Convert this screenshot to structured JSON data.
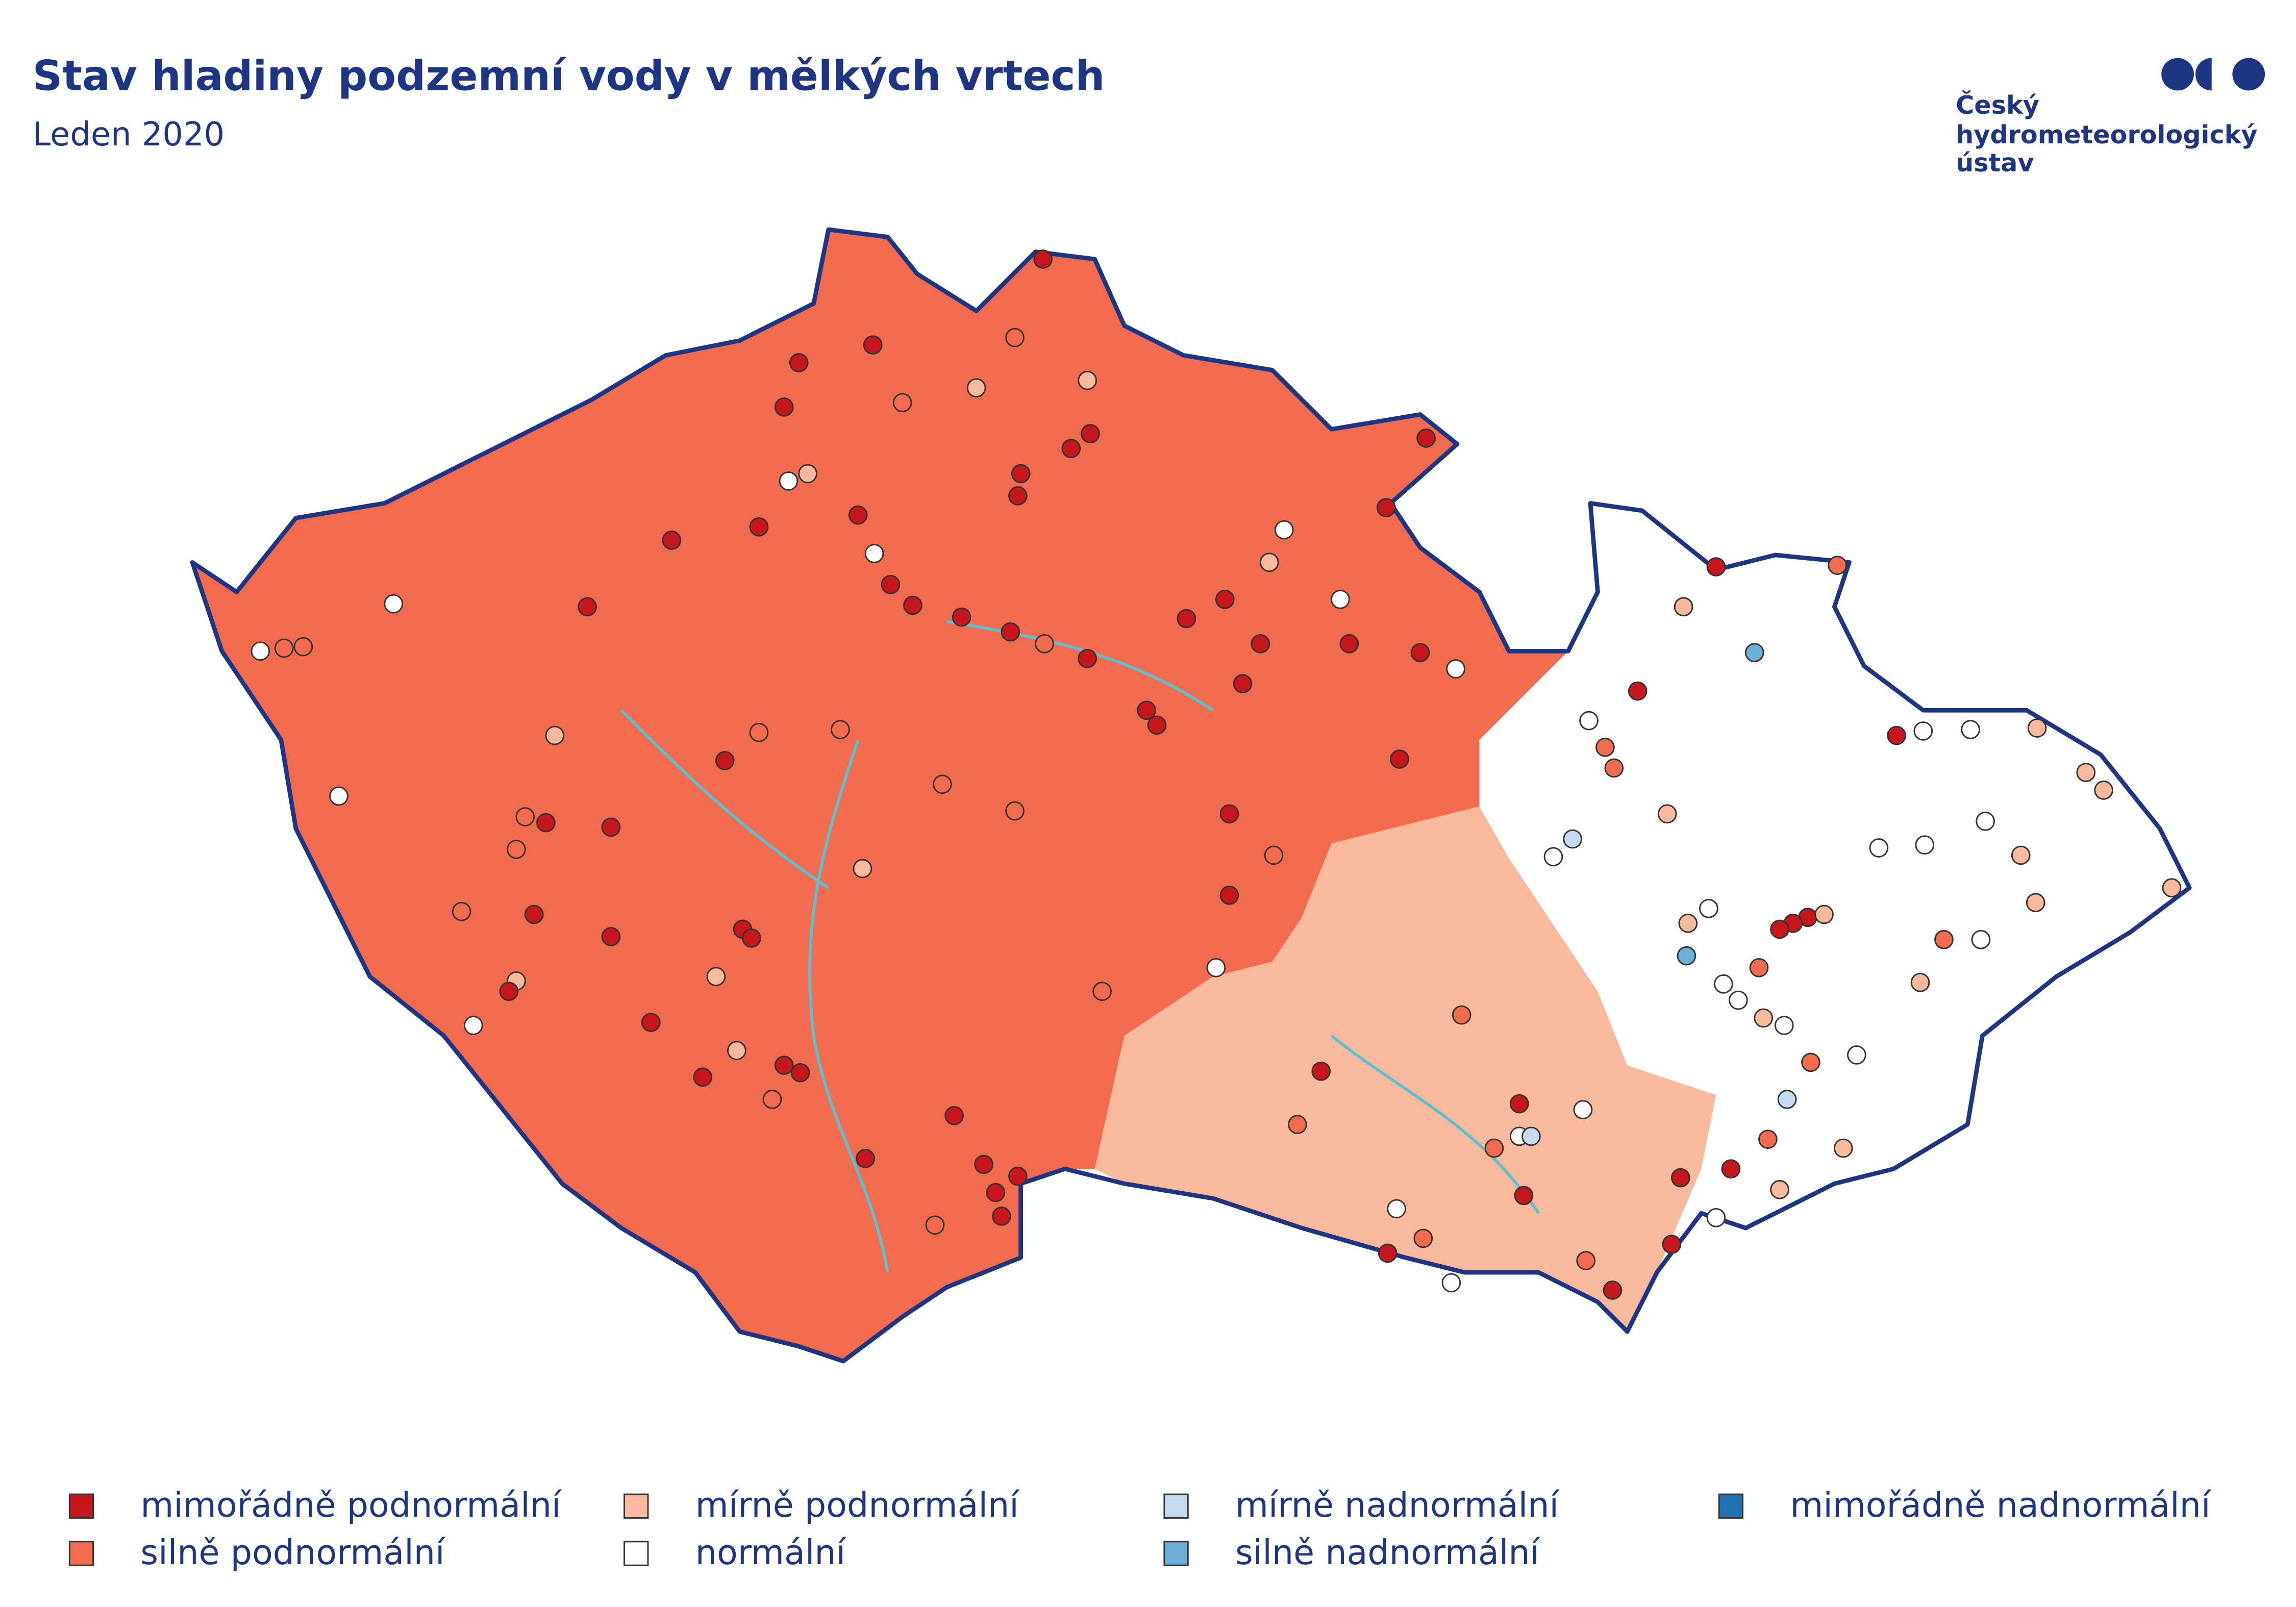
{
  "header": {
    "title": "Stav hladiny podzemní vody v mělkých vrtech",
    "subtitle": "Leden 2020"
  },
  "logo": {
    "lines": [
      "Český",
      "hydrometeorologický",
      "ústav"
    ]
  },
  "legend": [
    {
      "label": "mimořádně podnormální",
      "color": "#c8161e"
    },
    {
      "label": "silně podnormální",
      "color": "#f26b4f"
    },
    {
      "label": "mírně podnormální",
      "color": "#f9b99c"
    },
    {
      "label": "normální",
      "color": "#ffffff"
    },
    {
      "label": "mírně nadnormální",
      "color": "#c6dbef"
    },
    {
      "label": "silně nadnormální",
      "color": "#6baed6"
    },
    {
      "label": "mimořádně nadnormální",
      "color": "#2171b5"
    }
  ]
}
